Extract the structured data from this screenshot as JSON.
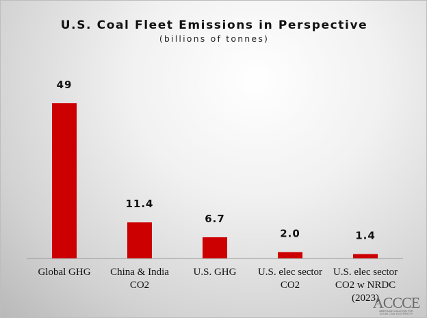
{
  "chart_data": {
    "type": "bar",
    "title": "U.S. Coal Fleet Emissions in Perspective",
    "subtitle": "(billions of tonnes)",
    "categories": [
      "Global GHG",
      "China & India CO2",
      "U.S. GHG",
      "U.S. elec sector CO2",
      "U.S. elec sector CO2 w NRDC (2023)"
    ],
    "category_lines": [
      [
        "Global GHG"
      ],
      [
        "China & India",
        "CO2"
      ],
      [
        "U.S. GHG"
      ],
      [
        "U.S. elec sector",
        "CO2"
      ],
      [
        "U.S. elec sector",
        "CO2 w NRDC",
        "(2023)"
      ]
    ],
    "values": [
      49,
      11.4,
      6.7,
      2.0,
      1.4
    ],
    "value_labels": [
      "49",
      "11.4",
      "6.7",
      "2.0",
      "1.4"
    ],
    "ylim": [
      0,
      49
    ],
    "bar_color": "#cc0000",
    "axis_color": "#999999",
    "grid": false,
    "legend": "none"
  },
  "logo": {
    "mark": "ACCCE",
    "tagline_1": "AMERICAN COALITION FOR",
    "tagline_2": "CLEAN COAL ELECTRICITY"
  }
}
